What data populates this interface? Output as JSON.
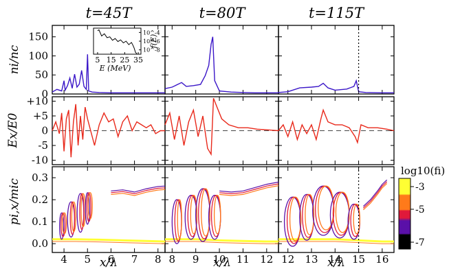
{
  "figure": {
    "column_titles": [
      "t=45T",
      "t=80T",
      "t=115T"
    ],
    "colorbar": {
      "label": "log10(fi)",
      "ticks": [
        "-3",
        "-5",
        "-7"
      ],
      "colors": [
        "#ffff33",
        "#ff7a1a",
        "#e0193a",
        "#5a10a8",
        "#000000"
      ]
    }
  },
  "chart_data": [
    {
      "type": "line",
      "row": "ion-density",
      "ylabel": "ni/nc",
      "yticks": [
        "0",
        "50",
        "100",
        "150"
      ],
      "ylim": [
        0,
        180
      ],
      "color": "#3a16c8",
      "panels": [
        {
          "xlim": [
            3.5,
            8.3
          ],
          "xticks": [
            "4",
            "5",
            "6",
            "7",
            "8"
          ],
          "x": [
            3.5,
            3.7,
            3.9,
            4.0,
            4.05,
            4.15,
            4.25,
            4.35,
            4.45,
            4.55,
            4.65,
            4.75,
            4.85,
            4.95,
            5.0,
            5.05,
            5.2,
            5.5,
            6.0,
            6.5,
            7.0,
            7.5,
            8.0,
            8.3
          ],
          "y": [
            5,
            12,
            8,
            35,
            10,
            22,
            42,
            15,
            52,
            18,
            26,
            62,
            20,
            12,
            104,
            8,
            5,
            4,
            3,
            3,
            3,
            3,
            3,
            3
          ]
        },
        {
          "xlim": [
            7.7,
            12.5
          ],
          "xticks": [
            "8",
            "9",
            "10",
            "11",
            "12"
          ],
          "x": [
            7.7,
            8.0,
            8.4,
            8.6,
            8.9,
            9.2,
            9.4,
            9.55,
            9.65,
            9.72,
            9.8,
            10.0,
            10.5,
            11.0,
            11.5,
            12.0,
            12.5
          ],
          "y": [
            14,
            18,
            30,
            20,
            22,
            25,
            48,
            75,
            130,
            150,
            35,
            8,
            5,
            4,
            3,
            3,
            3
          ]
        },
        {
          "xlim": [
            11.6,
            16.5
          ],
          "xticks": [
            "12",
            "13",
            "14",
            "15",
            "16"
          ],
          "x": [
            11.6,
            12.0,
            12.5,
            13.0,
            13.3,
            13.5,
            13.7,
            14.0,
            14.5,
            14.8,
            14.9,
            15.0,
            15.3,
            16.0,
            16.5
          ],
          "y": [
            4,
            6,
            16,
            18,
            20,
            28,
            16,
            10,
            13,
            20,
            35,
            6,
            4,
            3,
            3
          ]
        }
      ]
    },
    {
      "type": "line",
      "row": "inset-energy-spectrum",
      "xlabel": "E (MeV)",
      "ylabel": "f(E)",
      "xticks": [
        "5",
        "15",
        "25",
        "35"
      ],
      "yticks": [
        "10^-8",
        "10^-6",
        "10^-4"
      ],
      "xlim": [
        2,
        37
      ],
      "ylim": [
        -9,
        -3
      ],
      "x": [
        5,
        6,
        8,
        10,
        12,
        14,
        16,
        18,
        20,
        22,
        24,
        26,
        28,
        30,
        31,
        32,
        33,
        34
      ],
      "y": [
        -3.6,
        -3.4,
        -4.8,
        -4.3,
        -5.2,
        -5.0,
        -5.8,
        -5.4,
        -6.1,
        -5.7,
        -6.4,
        -6.0,
        -6.8,
        -6.3,
        -6.9,
        -7.6,
        -8.6,
        -8.9
      ]
    },
    {
      "type": "line",
      "row": "electric-field",
      "ylabel": "Ex/E0",
      "yticks": [
        "-10",
        "-5",
        "0",
        "+5",
        "+10"
      ],
      "ylim": [
        -11.5,
        11.5
      ],
      "color": "#e8281a",
      "panels": [
        {
          "xlim": [
            3.5,
            8.3
          ],
          "x": [
            3.5,
            3.65,
            3.8,
            3.9,
            4.0,
            4.1,
            4.2,
            4.3,
            4.4,
            4.5,
            4.6,
            4.7,
            4.8,
            4.9,
            5.0,
            5.1,
            5.3,
            5.5,
            5.7,
            5.9,
            6.1,
            6.3,
            6.5,
            6.7,
            6.9,
            7.1,
            7.3,
            7.5,
            7.7,
            7.9,
            8.1,
            8.3
          ],
          "y": [
            0,
            3,
            -1,
            6,
            -7,
            4,
            7,
            -9,
            3,
            9,
            -5,
            5,
            -3,
            8,
            4,
            1,
            -5,
            2,
            6,
            3,
            4,
            -2,
            3,
            5,
            0,
            3,
            2,
            1,
            2,
            -1,
            0,
            0
          ]
        },
        {
          "xlim": [
            7.7,
            12.5
          ],
          "x": [
            7.7,
            7.9,
            8.1,
            8.3,
            8.5,
            8.7,
            8.9,
            9.1,
            9.3,
            9.5,
            9.65,
            9.75,
            9.9,
            10.1,
            10.4,
            10.8,
            11.2,
            11.6,
            12.0,
            12.5
          ],
          "y": [
            2,
            6,
            -3,
            5,
            -5,
            3,
            7,
            -2,
            5,
            -6,
            -8,
            11,
            8,
            4,
            2,
            1,
            1,
            0.5,
            0.3,
            0
          ]
        },
        {
          "xlim": [
            11.6,
            16.5
          ],
          "x": [
            11.6,
            11.8,
            12.0,
            12.2,
            12.4,
            12.6,
            12.8,
            13.0,
            13.2,
            13.4,
            13.5,
            13.7,
            14.0,
            14.3,
            14.6,
            14.85,
            14.95,
            15.1,
            15.4,
            15.8,
            16.2,
            16.5
          ],
          "y": [
            0,
            2,
            -2,
            3,
            -3,
            2,
            -1,
            2,
            -3,
            4,
            7,
            3,
            2,
            2,
            1,
            -2,
            -4,
            2,
            1,
            1,
            0.5,
            0
          ]
        }
      ]
    },
    {
      "type": "scatter",
      "row": "ion-phase-space",
      "xlabel": "x/λ",
      "ylabel": "pi,x/mic",
      "yticks": [
        "0.0",
        "0.1",
        "0.2",
        "0.3"
      ],
      "ylim": [
        -0.04,
        0.35
      ],
      "panels": [
        {
          "xlim": [
            3.5,
            8.3
          ],
          "xticks": [
            "4",
            "5",
            "6",
            "7",
            "8"
          ],
          "upper_branch": {
            "x": [
              6.0,
              6.5,
              7.0,
              7.5,
              8.0,
              8.3
            ],
            "y": [
              0.24,
              0.245,
              0.235,
              0.25,
              0.26,
              0.262
            ]
          },
          "cold_branch": {
            "x": [
              3.5,
              4.5,
              5.5,
              6.5,
              7.5,
              8.3
            ],
            "y": [
              0.02,
              0.02,
              0.018,
              0.015,
              0.012,
              0.01
            ]
          }
        },
        {
          "xlim": [
            7.7,
            12.5
          ],
          "xticks": [
            "8",
            "9",
            "10",
            "11",
            "12"
          ],
          "upper_branch": {
            "x": [
              10.0,
              10.5,
              11.0,
              11.5,
              12.0,
              12.5
            ],
            "y": [
              0.24,
              0.235,
              0.24,
              0.255,
              0.27,
              0.28
            ]
          },
          "cold_branch": {
            "x": [
              7.7,
              9.0,
              10.0,
              11.0,
              12.0,
              12.5
            ],
            "y": [
              0.02,
              0.02,
              0.015,
              0.012,
              0.01,
              0.01
            ]
          }
        },
        {
          "xlim": [
            11.6,
            16.5
          ],
          "xticks": [
            "12",
            "13",
            "14",
            "15",
            "16"
          ],
          "upper_branch": {
            "x": [
              15.2,
              15.5,
              15.8,
              16.0,
              16.2
            ],
            "y": [
              0.17,
              0.2,
              0.24,
              0.27,
              0.29
            ]
          },
          "cold_branch": {
            "x": [
              11.6,
              13.0,
              14.0,
              15.0,
              16.0,
              16.5
            ],
            "y": [
              0.02,
              0.02,
              0.02,
              0.015,
              0.01,
              0.01
            ]
          }
        }
      ]
    }
  ],
  "annotations": {
    "dotted_marker_x": 15
  }
}
